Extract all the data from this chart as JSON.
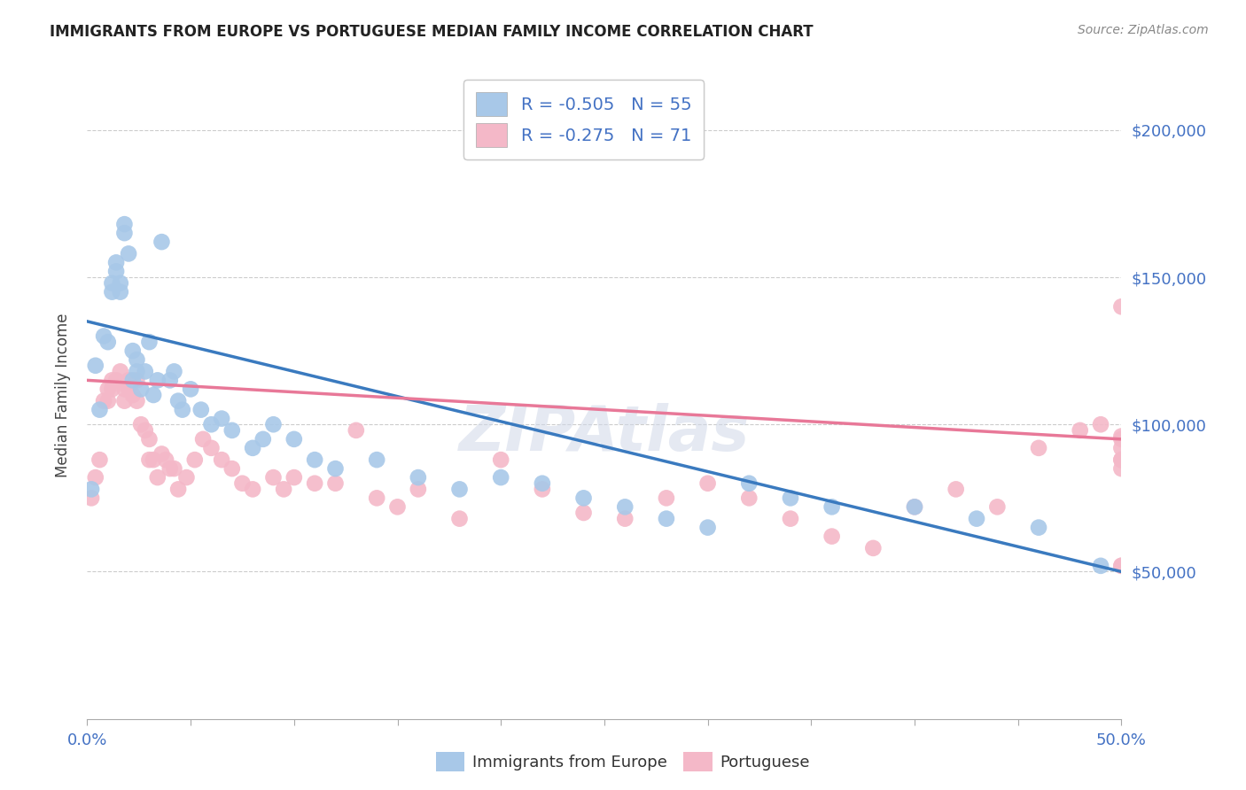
{
  "title": "IMMIGRANTS FROM EUROPE VS PORTUGUESE MEDIAN FAMILY INCOME CORRELATION CHART",
  "source": "Source: ZipAtlas.com",
  "ylabel": "Median Family Income",
  "legend_label_1": "Immigrants from Europe",
  "legend_label_2": "Portuguese",
  "r1": -0.505,
  "n1": 55,
  "r2": -0.275,
  "n2": 71,
  "color_blue": "#a8c8e8",
  "color_pink": "#f4b8c8",
  "line_blue": "#3a7abf",
  "line_pink": "#e87898",
  "ytick_labels": [
    "$50,000",
    "$100,000",
    "$150,000",
    "$200,000"
  ],
  "ytick_values": [
    50000,
    100000,
    150000,
    200000
  ],
  "ylim": [
    0,
    220000
  ],
  "xlim": [
    0,
    0.5
  ],
  "blue_x": [
    0.002,
    0.004,
    0.006,
    0.008,
    0.01,
    0.012,
    0.012,
    0.014,
    0.014,
    0.016,
    0.016,
    0.018,
    0.018,
    0.02,
    0.022,
    0.022,
    0.024,
    0.024,
    0.026,
    0.028,
    0.03,
    0.032,
    0.034,
    0.036,
    0.04,
    0.042,
    0.044,
    0.046,
    0.05,
    0.055,
    0.06,
    0.065,
    0.07,
    0.08,
    0.085,
    0.09,
    0.1,
    0.11,
    0.12,
    0.14,
    0.16,
    0.18,
    0.2,
    0.22,
    0.24,
    0.26,
    0.28,
    0.3,
    0.32,
    0.34,
    0.36,
    0.4,
    0.43,
    0.46,
    0.49
  ],
  "blue_y": [
    78000,
    120000,
    105000,
    130000,
    128000,
    145000,
    148000,
    155000,
    152000,
    148000,
    145000,
    168000,
    165000,
    158000,
    115000,
    125000,
    118000,
    122000,
    112000,
    118000,
    128000,
    110000,
    115000,
    162000,
    115000,
    118000,
    108000,
    105000,
    112000,
    105000,
    100000,
    102000,
    98000,
    92000,
    95000,
    100000,
    95000,
    88000,
    85000,
    88000,
    82000,
    78000,
    82000,
    80000,
    75000,
    72000,
    68000,
    65000,
    80000,
    75000,
    72000,
    72000,
    68000,
    65000,
    52000
  ],
  "pink_x": [
    0.002,
    0.004,
    0.006,
    0.008,
    0.01,
    0.01,
    0.012,
    0.012,
    0.014,
    0.016,
    0.018,
    0.018,
    0.02,
    0.02,
    0.022,
    0.024,
    0.024,
    0.026,
    0.028,
    0.03,
    0.03,
    0.032,
    0.034,
    0.036,
    0.038,
    0.04,
    0.042,
    0.044,
    0.048,
    0.052,
    0.056,
    0.06,
    0.065,
    0.07,
    0.075,
    0.08,
    0.09,
    0.095,
    0.1,
    0.11,
    0.12,
    0.13,
    0.14,
    0.15,
    0.16,
    0.18,
    0.2,
    0.22,
    0.24,
    0.26,
    0.28,
    0.3,
    0.32,
    0.34,
    0.36,
    0.38,
    0.4,
    0.42,
    0.44,
    0.46,
    0.48,
    0.49,
    0.5,
    0.5,
    0.5,
    0.5,
    0.5,
    0.5,
    0.5,
    0.5,
    0.5
  ],
  "pink_y": [
    75000,
    82000,
    88000,
    108000,
    112000,
    108000,
    115000,
    112000,
    115000,
    118000,
    112000,
    108000,
    115000,
    112000,
    110000,
    108000,
    115000,
    100000,
    98000,
    95000,
    88000,
    88000,
    82000,
    90000,
    88000,
    85000,
    85000,
    78000,
    82000,
    88000,
    95000,
    92000,
    88000,
    85000,
    80000,
    78000,
    82000,
    78000,
    82000,
    80000,
    80000,
    98000,
    75000,
    72000,
    78000,
    68000,
    88000,
    78000,
    70000,
    68000,
    75000,
    80000,
    75000,
    68000,
    62000,
    58000,
    72000,
    78000,
    72000,
    92000,
    98000,
    100000,
    96000,
    88000,
    85000,
    52000,
    140000,
    95000,
    92000,
    88000,
    52000
  ]
}
